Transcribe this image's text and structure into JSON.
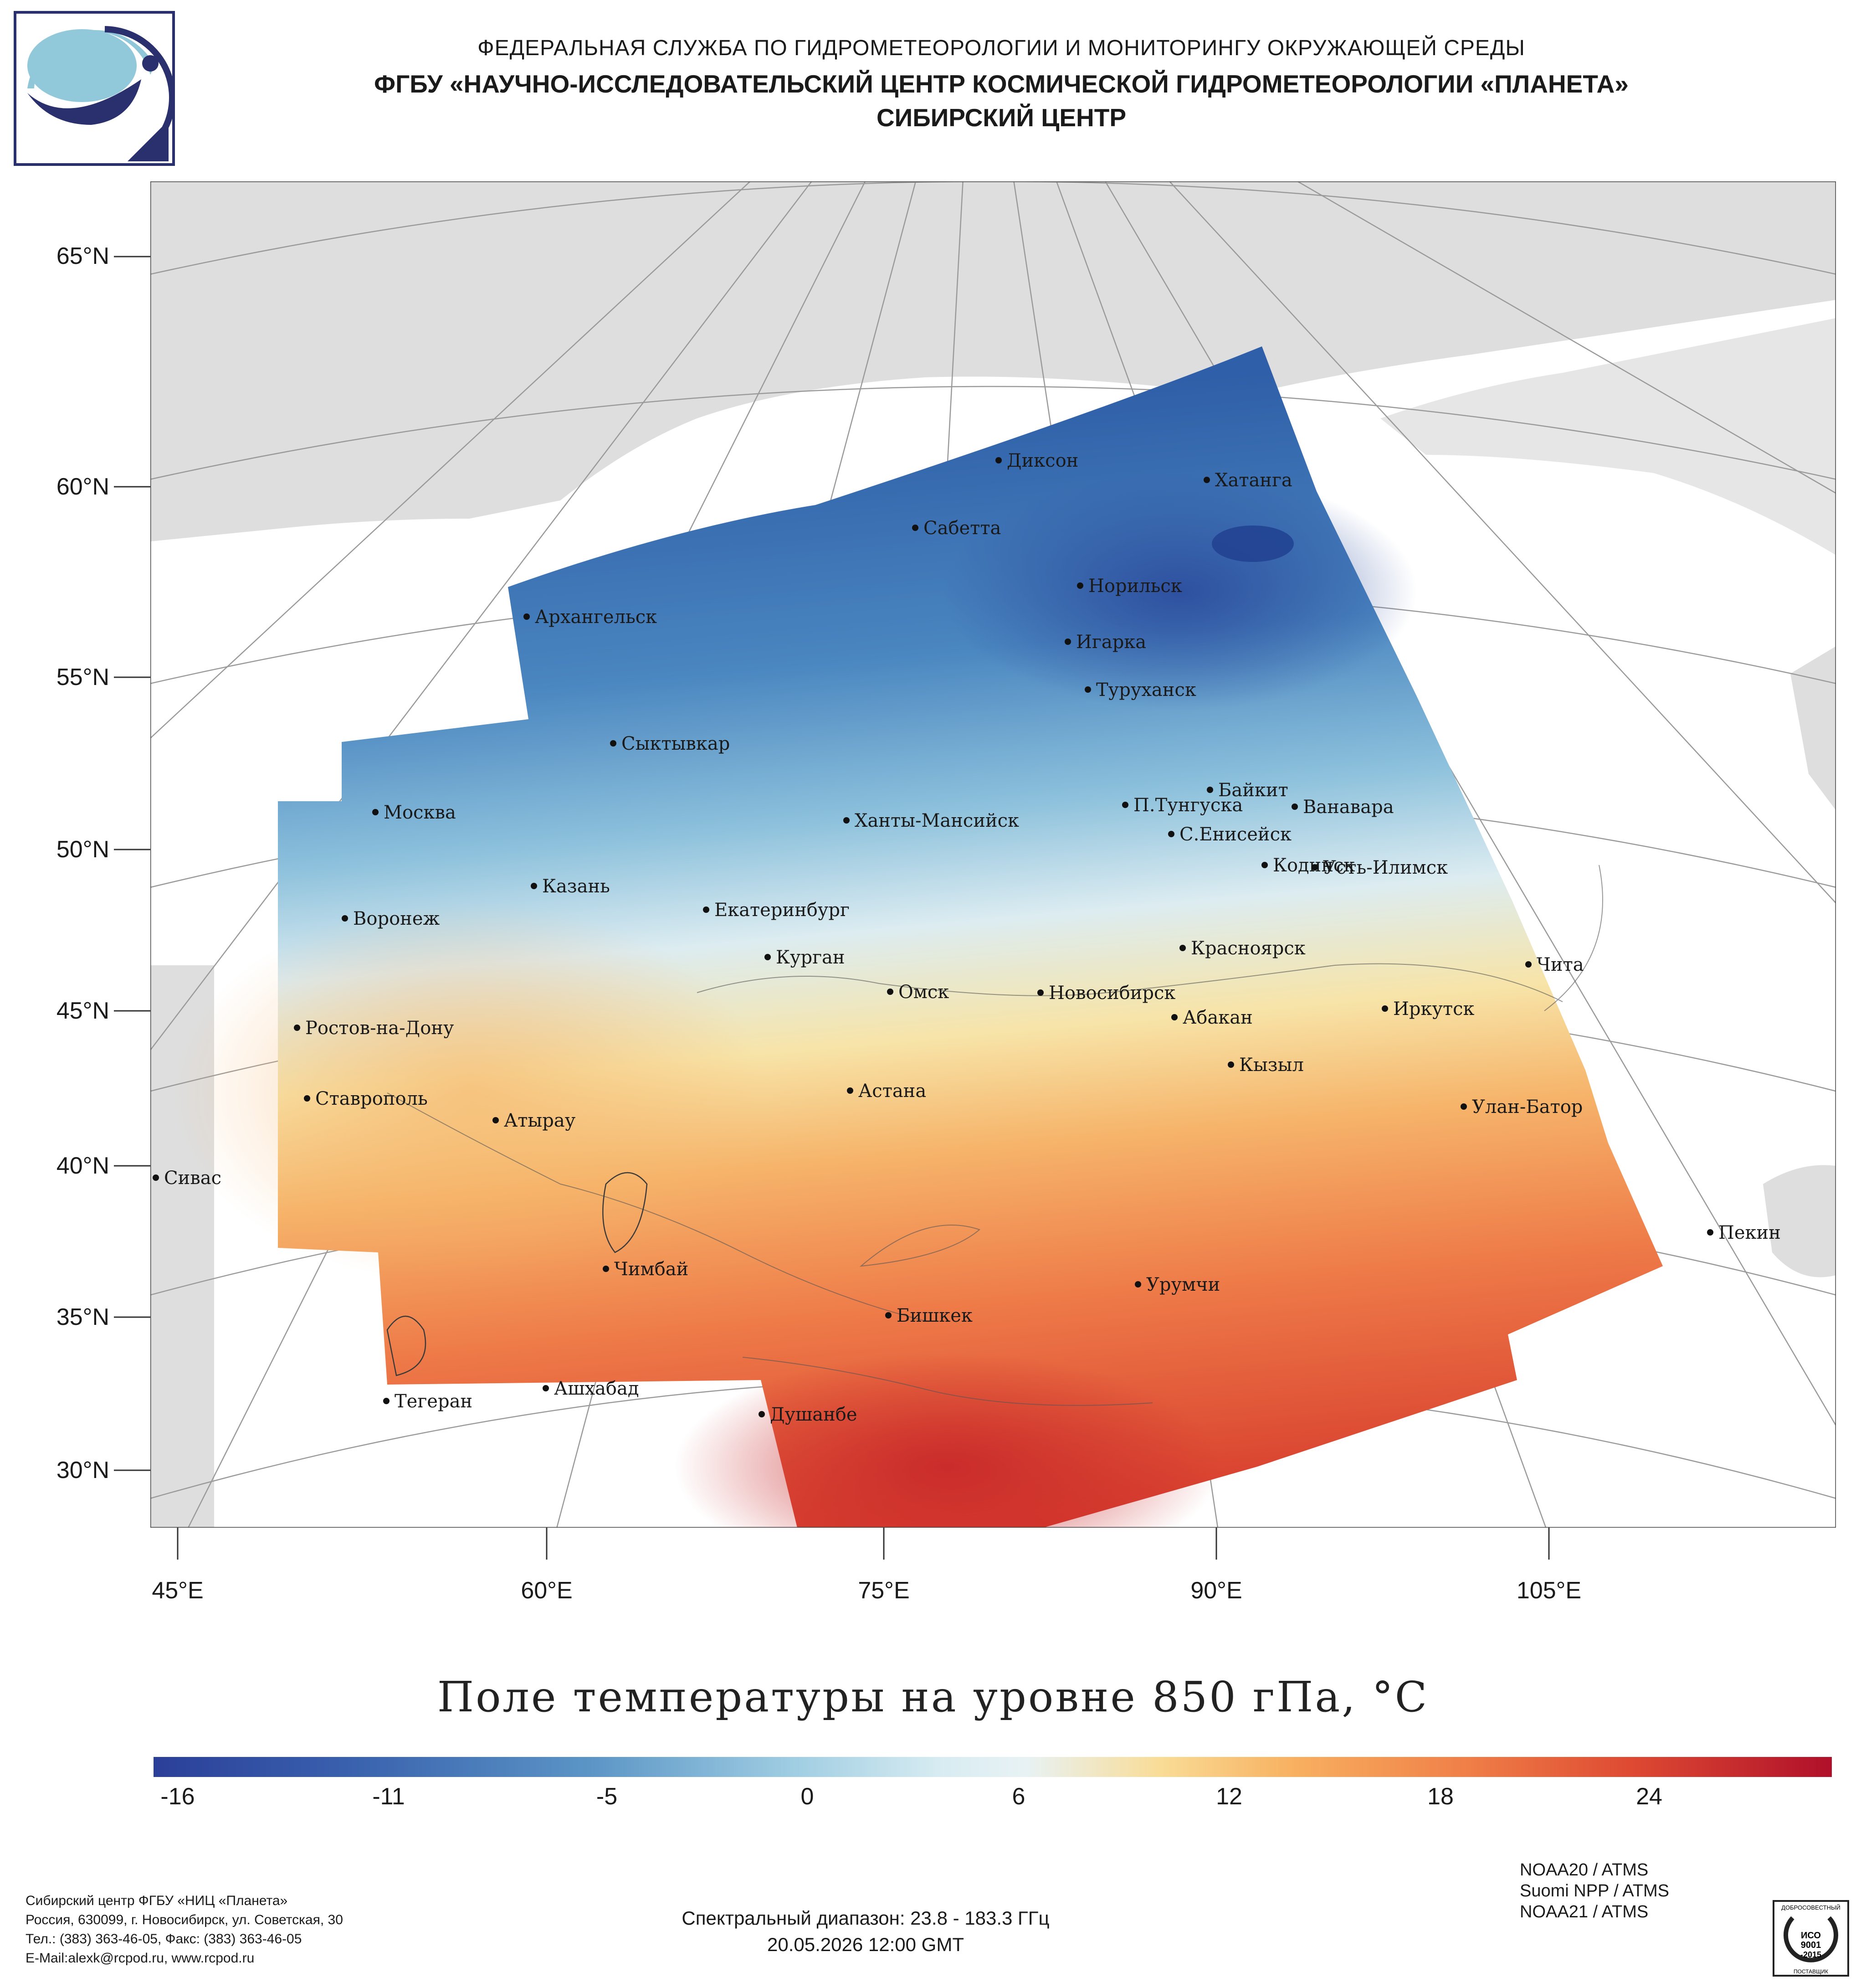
{
  "header": {
    "line1": "ФЕДЕРАЛЬНАЯ СЛУЖБА ПО ГИДРОМЕТЕОРОЛОГИИ И МОНИТОРИНГУ ОКРУЖАЮЩЕЙ СРЕДЫ",
    "line2": "ФГБУ «НАУЧНО-ИССЛЕДОВАТЕЛЬСКИЙ ЦЕНТР КОСМИЧЕСКОЙ ГИДРОМЕТЕОРОЛОГИИ «ПЛАНЕТА»",
    "line3": "СИБИРСКИЙ ЦЕНТР"
  },
  "map": {
    "lat_labels": [
      "65°N",
      "60°N",
      "55°N",
      "50°N",
      "45°N",
      "40°N",
      "35°N",
      "30°N"
    ],
    "lon_labels": [
      "45°E",
      "60°E",
      "75°E",
      "90°E",
      "105°E"
    ],
    "cities": [
      "Диксон",
      "Хатанга",
      "Сабетта",
      "Норильск",
      "Архангельск",
      "Игарка",
      "Туруханск",
      "Сыктывкар",
      "Байкит",
      "П.Тунгуска",
      "Ванавара",
      "Москва",
      "Ханты-Мансийск",
      "С.Енисейск",
      "Кодинск",
      "Усть-Илимск",
      "Казань",
      "Екатеринбург",
      "Воронеж",
      "Красноярск",
      "Курган",
      "Чита",
      "Омск",
      "Новосибирск",
      "Иркутск",
      "Ростов-на-Дону",
      "Абакан",
      "Кызыл",
      "Ставрополь",
      "Астана",
      "Улан-Батор",
      "Атырау",
      "Сивас",
      "Пекин",
      "Чимбай",
      "Урумчи",
      "Бишкек",
      "Ашхабад",
      "Тегеран",
      "Душанбе"
    ]
  },
  "title": "Поле температуры на уровне 850 гПа, °С",
  "colorbar": {
    "ticks": [
      "-16",
      "-11",
      "-5",
      "0",
      "6",
      "12",
      "18",
      "24"
    ],
    "min_color": "#2b3f99",
    "mid_color": "#e8f2f4",
    "max_color": "#b0102a"
  },
  "footer": {
    "org": "Сибирский центр ФГБУ «НИЦ «Планета»",
    "address": "Россия, 630099, г. Новосибирск, ул. Советская, 30",
    "phone": "Тел.: (383) 363-46-05, Факс: (383) 363-46-05",
    "email": "E-Mail:alexk@rcpod.ru, www.rcpod.ru",
    "spectral": "Спектральный диапазон: 23.8 - 183.3 ГГц",
    "datetime": "20.05.2026 12:00 GMT",
    "sat1": "NOAA20 / ATMS",
    "sat2": "Suomi NPP / ATMS",
    "sat3": "NOAA21 / ATMS",
    "stamp_top": "ДОБРОСОВЕСТНЫЙ",
    "stamp_iso": "ИСО",
    "stamp_num": "9001",
    "stamp_year": "-2015",
    "stamp_bottom": "ПОСТАВЩИК"
  }
}
